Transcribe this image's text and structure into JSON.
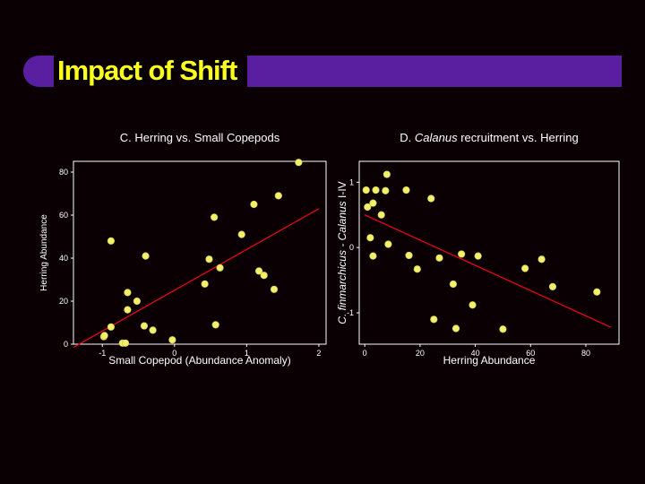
{
  "slide_title": "Impact of Shift",
  "colors": {
    "title_text": "#ffff1e",
    "accent_bar": "#5a1fa0",
    "points": "#f2f06c",
    "fit_line": "#e8001a",
    "background": "#0a0003"
  },
  "chart_data": [
    {
      "type": "scatter",
      "title": "C. Herring vs. Small Copepods",
      "xlabel": "Small Copepod (Abundance Anomaly)",
      "ylabel": "Herring Abundance",
      "xlim": [
        -1.4,
        2.1
      ],
      "ylim": [
        0,
        85
      ],
      "xticks": [
        -1,
        0,
        1,
        2
      ],
      "yticks": [
        0,
        20,
        40,
        60,
        80
      ],
      "points": [
        [
          -0.98,
          3.5
        ],
        [
          -0.97,
          4
        ],
        [
          -0.88,
          8
        ],
        [
          -0.88,
          48
        ],
        [
          -0.72,
          0.5
        ],
        [
          -0.68,
          0.5
        ],
        [
          -0.65,
          24
        ],
        [
          -0.65,
          16
        ],
        [
          -0.52,
          20
        ],
        [
          -0.42,
          8.5
        ],
        [
          -0.4,
          41
        ],
        [
          -0.3,
          6.5
        ],
        [
          -0.03,
          2
        ],
        [
          0.42,
          28
        ],
        [
          0.48,
          39.5
        ],
        [
          0.55,
          59
        ],
        [
          0.57,
          9
        ],
        [
          0.63,
          35.5
        ],
        [
          0.93,
          51
        ],
        [
          1.1,
          65
        ],
        [
          1.17,
          34
        ],
        [
          1.24,
          32
        ],
        [
          1.38,
          25.5
        ],
        [
          1.44,
          69
        ],
        [
          1.72,
          84.5
        ]
      ],
      "fit_line": [
        [
          -1.4,
          -1.5
        ],
        [
          2.0,
          63
        ]
      ]
    },
    {
      "type": "scatter",
      "title_prefix": "D. ",
      "title_italic": "Calanus",
      "title_suffix": " recruitment vs. Herring",
      "xlabel": "Herring Abundance",
      "ylabel_italic": "C. finmarchicus - Calanus",
      "ylabel_suffix": " I-IV",
      "xlim": [
        -2,
        92
      ],
      "ylim": [
        -1.48,
        1.32
      ],
      "xticks": [
        0,
        20,
        40,
        60,
        80
      ],
      "yticks": [
        1,
        0,
        -1
      ],
      "points": [
        [
          0.5,
          0.88
        ],
        [
          1,
          0.62
        ],
        [
          2,
          0.15
        ],
        [
          3,
          0.68
        ],
        [
          3,
          -0.13
        ],
        [
          4,
          0.88
        ],
        [
          6,
          0.5
        ],
        [
          7.5,
          0.87
        ],
        [
          8,
          1.12
        ],
        [
          8.5,
          0.05
        ],
        [
          15,
          0.88
        ],
        [
          16,
          -0.12
        ],
        [
          19,
          -0.33
        ],
        [
          24,
          0.75
        ],
        [
          25,
          -1.1
        ],
        [
          27,
          -0.16
        ],
        [
          32,
          -0.56
        ],
        [
          33,
          -1.24
        ],
        [
          35,
          -0.1
        ],
        [
          39,
          -0.88
        ],
        [
          41,
          -0.13
        ],
        [
          50,
          -1.25
        ],
        [
          58,
          -0.32
        ],
        [
          64,
          -0.18
        ],
        [
          68,
          -0.6
        ],
        [
          84,
          -0.68
        ]
      ],
      "fit_line": [
        [
          0,
          0.5
        ],
        [
          89,
          -1.22
        ]
      ]
    }
  ]
}
